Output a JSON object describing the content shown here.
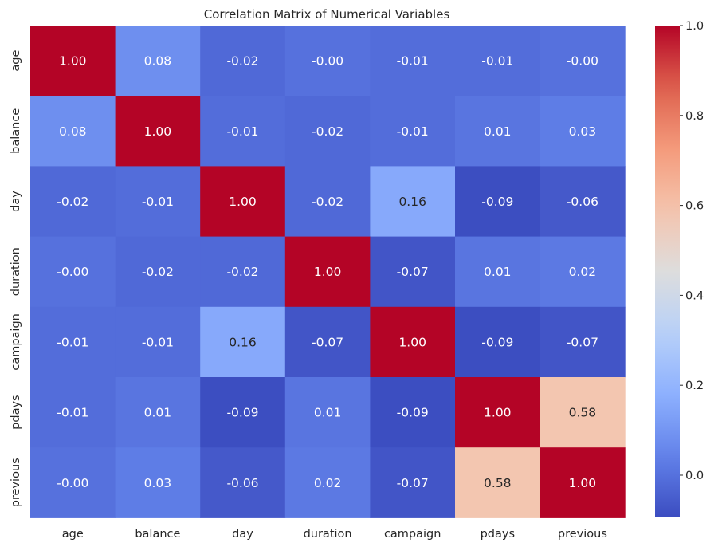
{
  "chart_data": {
    "type": "heatmap",
    "title": "Correlation Matrix of Numerical Variables",
    "xlabel": "",
    "ylabel": "",
    "x_categories": [
      "age",
      "balance",
      "day",
      "duration",
      "campaign",
      "pdays",
      "previous"
    ],
    "y_categories": [
      "age",
      "balance",
      "day",
      "duration",
      "campaign",
      "pdays",
      "previous"
    ],
    "values": [
      [
        1.0,
        0.08,
        -0.02,
        -0.0,
        -0.01,
        -0.01,
        -0.0
      ],
      [
        0.08,
        1.0,
        -0.01,
        -0.02,
        -0.01,
        0.01,
        0.03
      ],
      [
        -0.02,
        -0.01,
        1.0,
        -0.02,
        0.16,
        -0.09,
        -0.06
      ],
      [
        -0.0,
        -0.02,
        -0.02,
        1.0,
        -0.07,
        0.01,
        0.02
      ],
      [
        -0.01,
        -0.01,
        0.16,
        -0.07,
        1.0,
        -0.09,
        -0.07
      ],
      [
        -0.01,
        0.01,
        -0.09,
        0.01,
        -0.09,
        1.0,
        0.58
      ],
      [
        -0.0,
        0.03,
        -0.06,
        0.02,
        -0.07,
        0.58,
        1.0
      ]
    ],
    "value_labels": [
      [
        "1.00",
        "0.08",
        "-0.02",
        "-0.00",
        "-0.01",
        "-0.01",
        "-0.00"
      ],
      [
        "0.08",
        "1.00",
        "-0.01",
        "-0.02",
        "-0.01",
        "0.01",
        "0.03"
      ],
      [
        "-0.02",
        "-0.01",
        "1.00",
        "-0.02",
        "0.16",
        "-0.09",
        "-0.06"
      ],
      [
        "-0.00",
        "-0.02",
        "-0.02",
        "1.00",
        "-0.07",
        "0.01",
        "0.02"
      ],
      [
        "-0.01",
        "-0.01",
        "0.16",
        "-0.07",
        "1.00",
        "-0.09",
        "-0.07"
      ],
      [
        "-0.01",
        "0.01",
        "-0.09",
        "0.01",
        "-0.09",
        "1.00",
        "0.58"
      ],
      [
        "-0.00",
        "0.03",
        "-0.06",
        "0.02",
        "-0.07",
        "0.58",
        "1.00"
      ]
    ],
    "colormap": "coolwarm",
    "colorbar": {
      "range": [
        -0.094,
        1.0
      ],
      "ticks": [
        0.0,
        0.2,
        0.4,
        0.6,
        0.8,
        1.0
      ],
      "tick_labels": [
        "0.0",
        "0.2",
        "0.4",
        "0.6",
        "0.8",
        "1.0"
      ]
    },
    "grid": false,
    "legend": "colorbar-right"
  }
}
